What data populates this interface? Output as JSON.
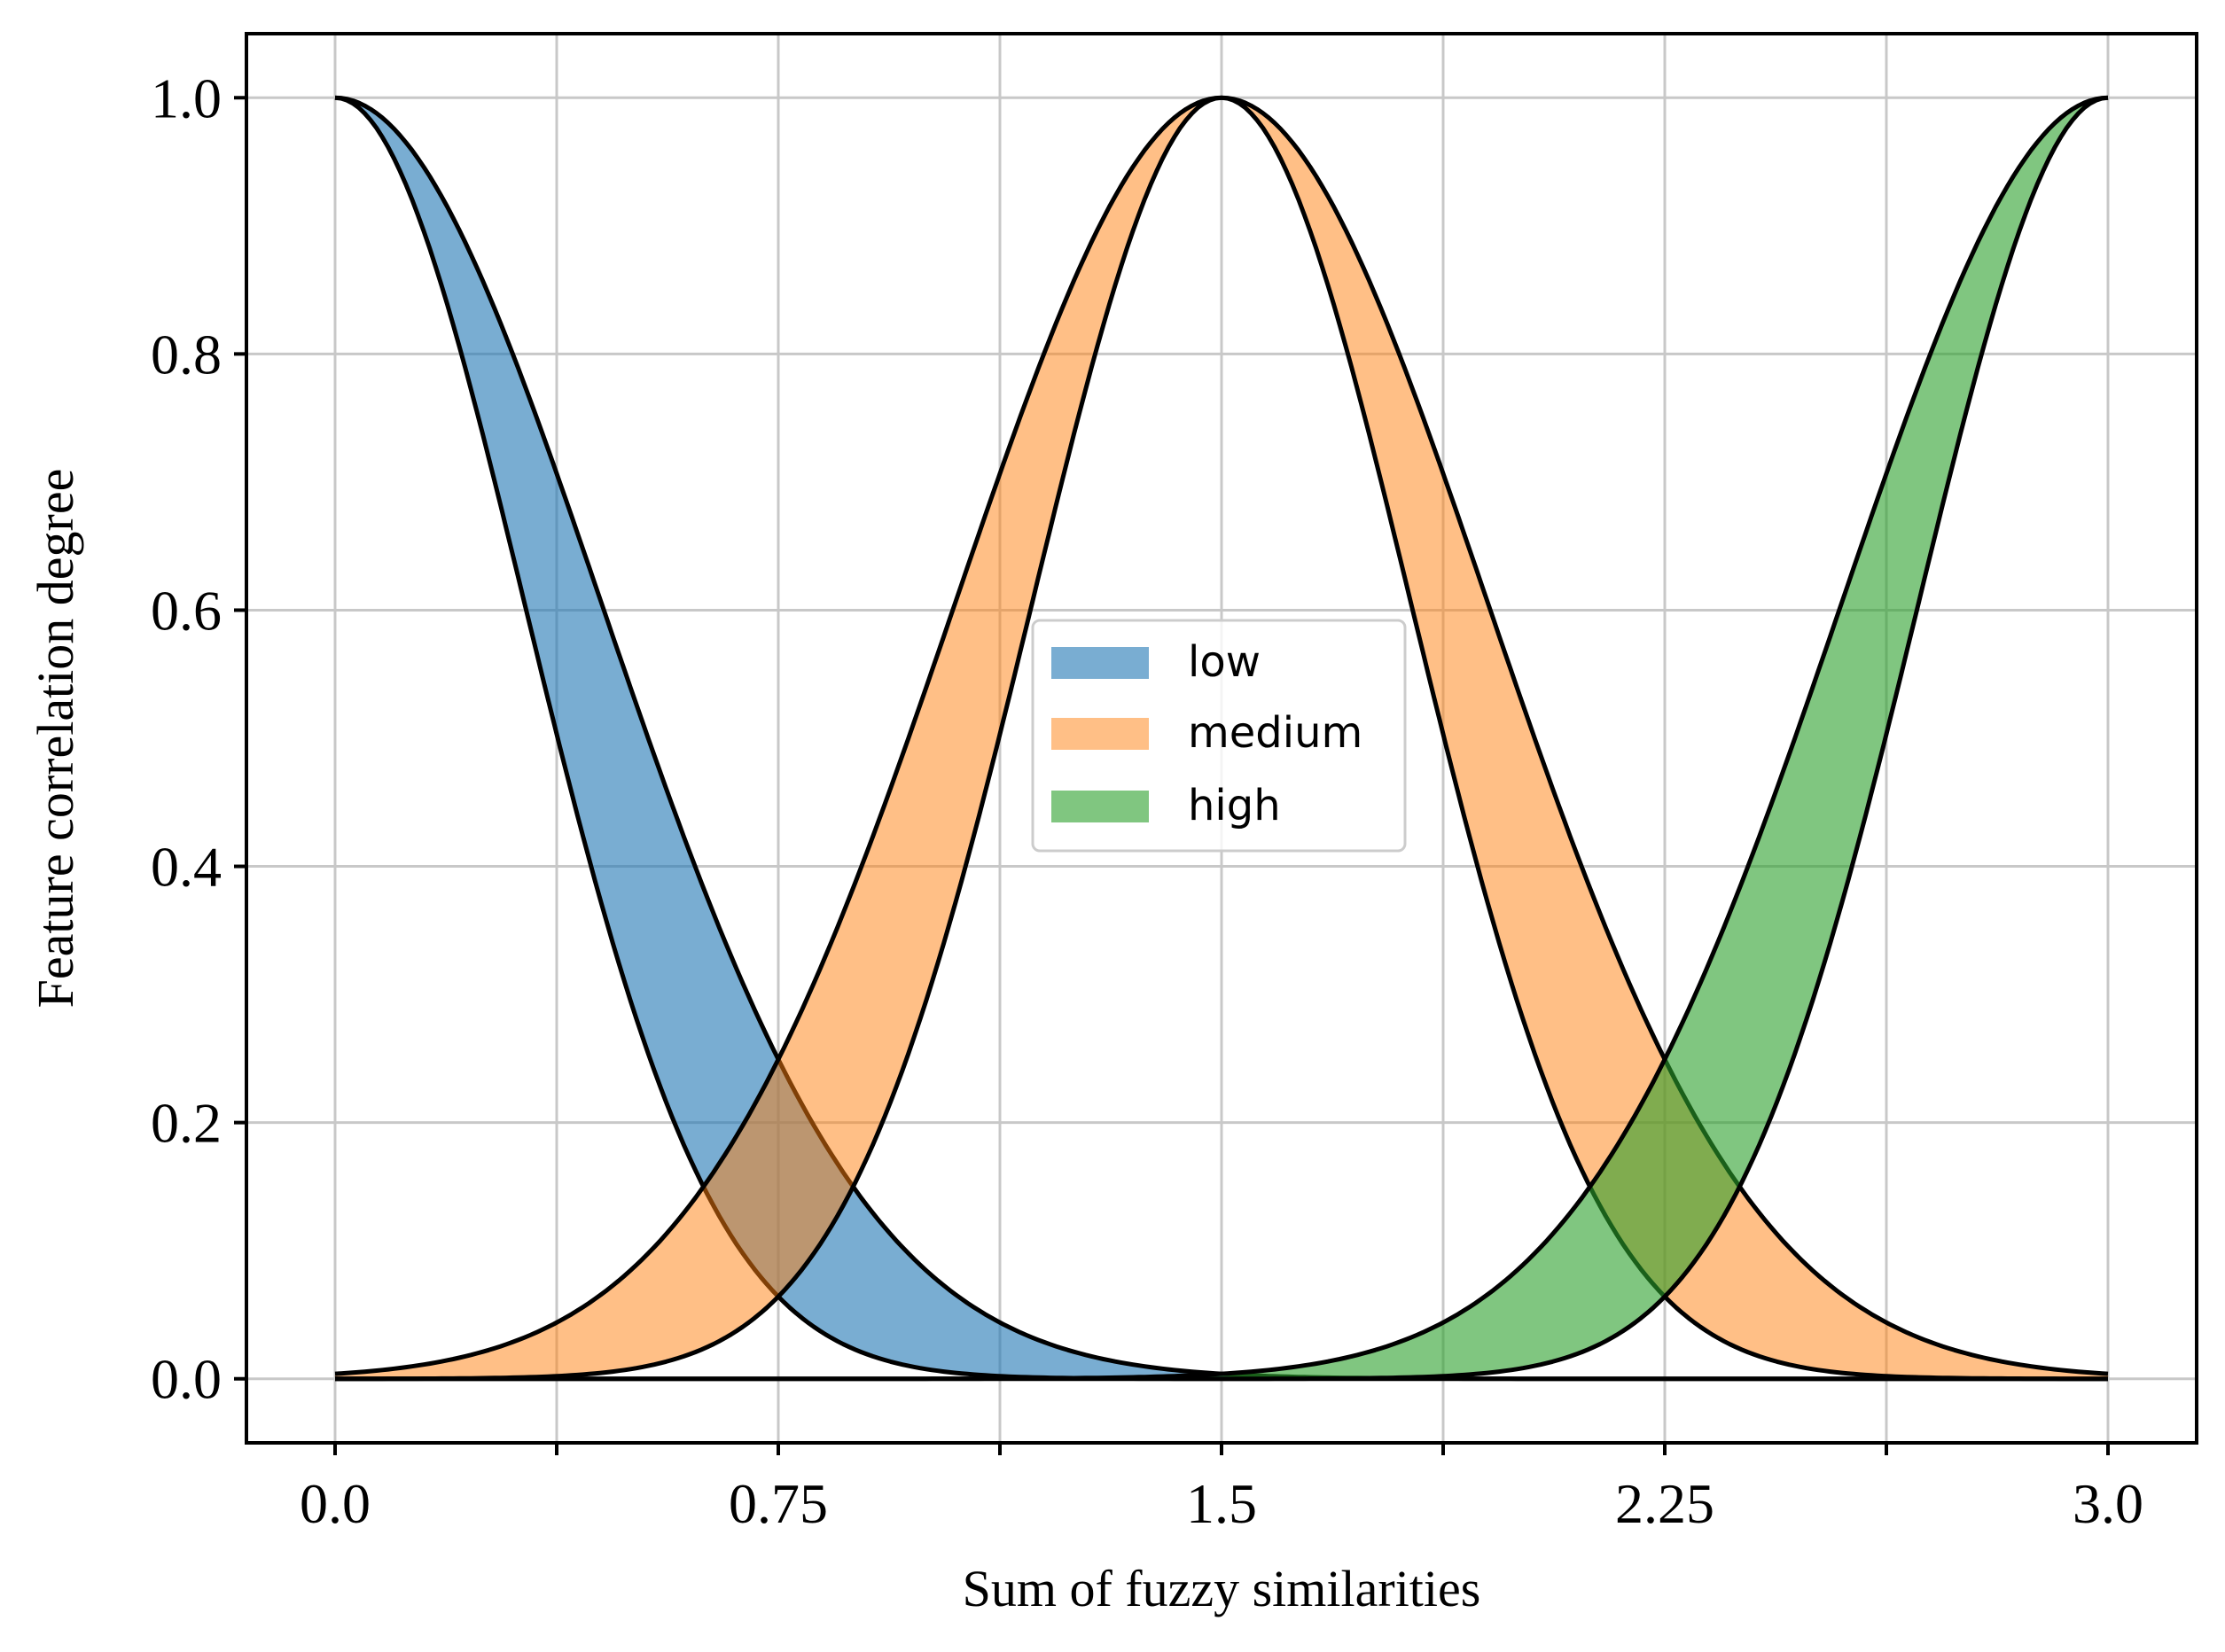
{
  "chart_data": {
    "type": "area",
    "title": "",
    "xlabel": "Sum of fuzzy similarities",
    "ylabel": "Feature correlation degree",
    "xlim": [
      -0.15,
      3.15
    ],
    "ylim": [
      -0.05,
      1.05
    ],
    "x_ticks": [
      {
        "value": 0,
        "label": "0.0"
      },
      {
        "value": 0.75,
        "label": "0.75"
      },
      {
        "value": 1.5,
        "label": "1.5"
      },
      {
        "value": 2.25,
        "label": "2.25"
      },
      {
        "value": 3,
        "label": "3.0"
      }
    ],
    "x_minor_ticks": [
      0.375,
      1.125,
      1.875,
      2.625
    ],
    "y_ticks": [
      {
        "value": 0,
        "label": "0.0"
      },
      {
        "value": 0.2,
        "label": "0.2"
      },
      {
        "value": 0.4,
        "label": "0.4"
      },
      {
        "value": 0.6,
        "label": "0.6"
      },
      {
        "value": 0.8,
        "label": "0.8"
      },
      {
        "value": 1.0,
        "label": "1.0"
      }
    ],
    "grid": true,
    "legend_position": "center",
    "series": [
      {
        "name": "low",
        "shape": "gaussian",
        "mean": 0,
        "sigma_lower": 0.32,
        "sigma_upper": 0.45,
        "color": "#1f77b4",
        "opacity": 0.6
      },
      {
        "name": "medium",
        "shape": "gaussian",
        "mean": 1.5,
        "sigma_lower": 0.32,
        "sigma_upper": 0.45,
        "color": "#ff7f0e",
        "opacity": 0.5
      },
      {
        "name": "high",
        "shape": "gaussian",
        "mean": 3,
        "sigma_lower": 0.32,
        "sigma_upper": 0.45,
        "color": "#2ca02c",
        "opacity": 0.6
      }
    ],
    "x_range": [
      0,
      3
    ]
  }
}
